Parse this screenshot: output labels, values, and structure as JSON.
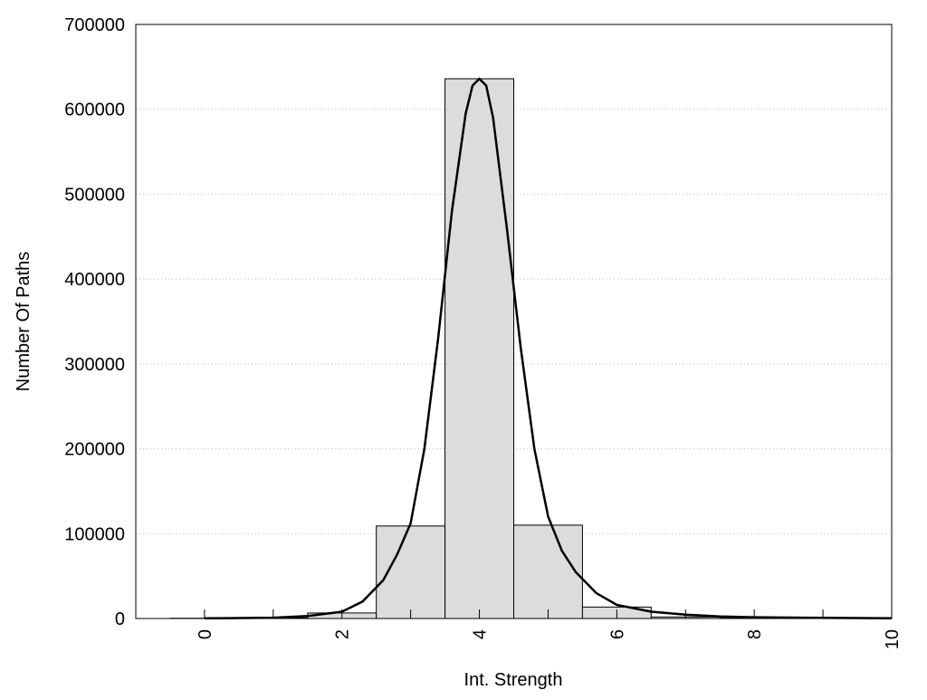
{
  "chart_data": {
    "type": "bar",
    "title": "",
    "xlabel": "Int. Strength",
    "ylabel": "Number Of Paths",
    "xlim": [
      -1,
      10
    ],
    "ylim": [
      0,
      700000
    ],
    "grid": "horizontal dotted",
    "xticks": [
      "0",
      "2",
      "4",
      "6",
      "8",
      "10"
    ],
    "xtick_values": [
      0,
      2,
      4,
      6,
      8,
      10
    ],
    "yticks": [
      "0",
      "100000",
      "200000",
      "300000",
      "400000",
      "500000",
      "600000",
      "700000"
    ],
    "ytick_values": [
      0,
      100000,
      200000,
      300000,
      400000,
      500000,
      600000,
      700000
    ],
    "bar_color": "#dcdcdc",
    "bars": {
      "x": [
        0,
        1,
        2,
        3,
        4,
        5,
        6,
        7,
        8,
        9
      ],
      "values": [
        300,
        800,
        6500,
        109000,
        636000,
        110000,
        13500,
        1800,
        400,
        200
      ]
    },
    "fit_curve": {
      "x": [
        0,
        0.5,
        1,
        1.5,
        2,
        2.3,
        2.6,
        2.8,
        3,
        3.2,
        3.4,
        3.6,
        3.8,
        3.9,
        4,
        4.1,
        4.2,
        4.4,
        4.6,
        4.8,
        5,
        5.2,
        5.4,
        5.7,
        6,
        6.5,
        7,
        7.5,
        8,
        9,
        10
      ],
      "y": [
        200,
        500,
        1000,
        3000,
        8000,
        20000,
        45000,
        75000,
        112000,
        200000,
        330000,
        480000,
        595000,
        628000,
        636000,
        628000,
        590000,
        460000,
        320000,
        200000,
        120000,
        80000,
        55000,
        30000,
        16000,
        8000,
        4500,
        2500,
        1500,
        800,
        300
      ]
    }
  }
}
